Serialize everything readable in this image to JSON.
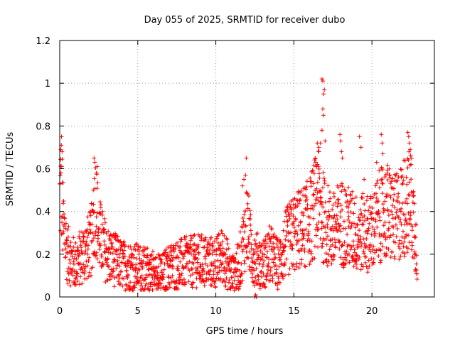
{
  "chart_data": {
    "type": "scatter",
    "title": "Day 055 of 2025, SRMTID for receiver dubo",
    "xlabel": "GPS time / hours",
    "ylabel": "SRMTID / TECUs",
    "xlim": [
      0,
      24
    ],
    "ylim": [
      0,
      1.2
    ],
    "x_ticks": [
      "0",
      "5",
      "10",
      "15",
      "20"
    ],
    "y_ticks": [
      "0",
      "0.2",
      "0.4",
      "0.6",
      "0.8",
      "1",
      "1.2"
    ],
    "grid": true,
    "marker": "+",
    "series": [
      {
        "name": "SRMTID",
        "color": "#ff0000",
        "profile": [
          [
            0.0,
            0.45
          ],
          [
            0.1,
            0.55
          ],
          [
            0.2,
            0.35
          ],
          [
            0.5,
            0.2
          ],
          [
            1.0,
            0.15
          ],
          [
            1.5,
            0.2
          ],
          [
            2.0,
            0.25
          ],
          [
            2.3,
            0.45
          ],
          [
            2.5,
            0.3
          ],
          [
            3.0,
            0.2
          ],
          [
            4.0,
            0.15
          ],
          [
            5.0,
            0.14
          ],
          [
            6.0,
            0.12
          ],
          [
            6.5,
            0.1
          ],
          [
            7.0,
            0.14
          ],
          [
            8.0,
            0.16
          ],
          [
            9.0,
            0.17
          ],
          [
            10.0,
            0.16
          ],
          [
            10.5,
            0.2
          ],
          [
            11.0,
            0.1
          ],
          [
            11.5,
            0.15
          ],
          [
            12.0,
            0.35
          ],
          [
            12.3,
            0.2
          ],
          [
            13.0,
            0.15
          ],
          [
            13.5,
            0.2
          ],
          [
            14.0,
            0.15
          ],
          [
            14.5,
            0.25
          ],
          [
            15.0,
            0.3
          ],
          [
            15.5,
            0.32
          ],
          [
            16.0,
            0.35
          ],
          [
            16.5,
            0.45
          ],
          [
            17.0,
            0.35
          ],
          [
            17.5,
            0.3
          ],
          [
            18.0,
            0.35
          ],
          [
            19.0,
            0.3
          ],
          [
            20.0,
            0.3
          ],
          [
            20.5,
            0.38
          ],
          [
            21.0,
            0.4
          ],
          [
            21.5,
            0.36
          ],
          [
            22.0,
            0.42
          ],
          [
            22.5,
            0.45
          ],
          [
            22.8,
            0.28
          ],
          [
            22.9,
            0.2
          ]
        ],
        "spikes": [
          [
            0.1,
            0.71
          ],
          [
            0.15,
            0.68
          ],
          [
            2.2,
            0.65
          ],
          [
            2.25,
            0.63
          ],
          [
            2.35,
            0.58
          ],
          [
            2.4,
            0.61
          ],
          [
            2.15,
            0.5
          ],
          [
            11.95,
            0.65
          ],
          [
            11.9,
            0.57
          ],
          [
            11.8,
            0.55
          ],
          [
            11.7,
            0.52
          ],
          [
            16.4,
            0.63
          ],
          [
            16.5,
            0.62
          ],
          [
            16.5,
            0.72
          ],
          [
            16.6,
            0.7
          ],
          [
            16.6,
            0.68
          ],
          [
            16.45,
            0.61
          ],
          [
            16.8,
            1.02
          ],
          [
            16.85,
            1.01
          ],
          [
            16.9,
            0.95
          ],
          [
            16.95,
            0.97
          ],
          [
            16.8,
            0.78
          ],
          [
            16.85,
            0.88
          ],
          [
            16.9,
            0.85
          ],
          [
            16.7,
            0.72
          ],
          [
            17.0,
            0.73
          ],
          [
            17.95,
            0.76
          ],
          [
            18.0,
            0.73
          ],
          [
            18.05,
            0.68
          ],
          [
            18.1,
            0.65
          ],
          [
            18.5,
            0.42
          ],
          [
            19.2,
            0.75
          ],
          [
            19.3,
            0.7
          ],
          [
            19.5,
            0.55
          ],
          [
            20.3,
            0.63
          ],
          [
            20.6,
            0.76
          ],
          [
            20.65,
            0.72
          ],
          [
            20.7,
            0.67
          ],
          [
            21.0,
            0.58
          ],
          [
            22.3,
            0.77
          ],
          [
            22.35,
            0.75
          ],
          [
            22.4,
            0.72
          ],
          [
            22.45,
            0.69
          ],
          [
            22.5,
            0.62
          ],
          [
            22.2,
            0.56
          ],
          [
            12.5,
            0.0
          ],
          [
            12.55,
            0.01
          ],
          [
            12.6,
            0.0
          ]
        ]
      }
    ]
  }
}
